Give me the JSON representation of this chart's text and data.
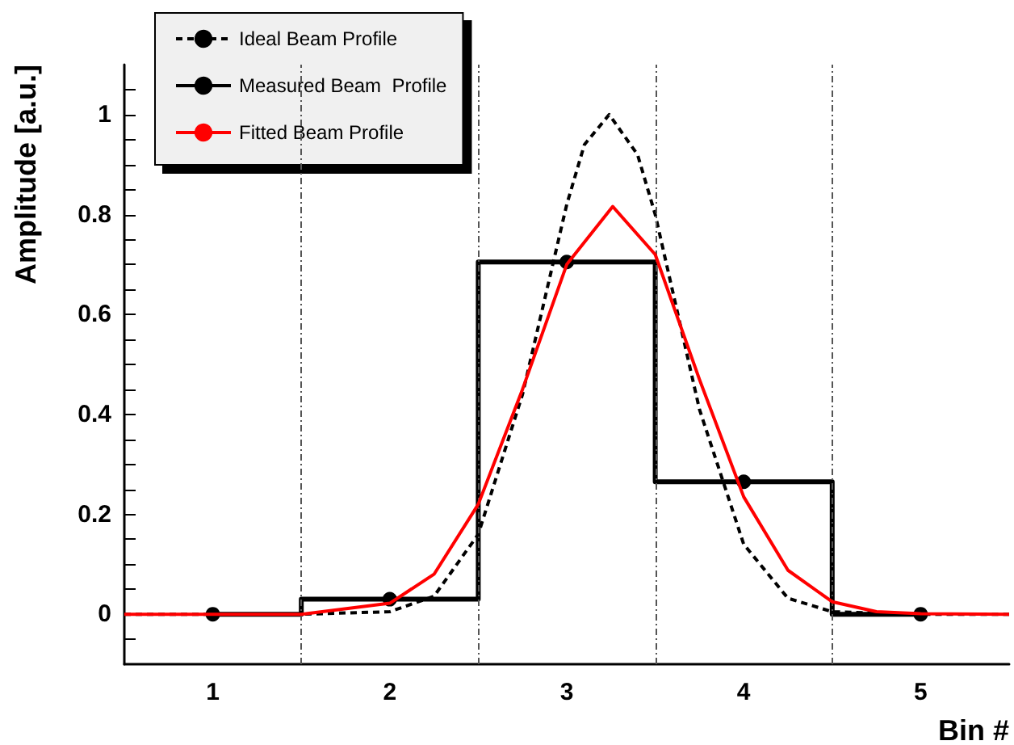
{
  "chart_data": {
    "type": "line",
    "xlabel": "Bin #",
    "ylabel": "Amplitude [a.u.]",
    "xlim": [
      0.5,
      5.5
    ],
    "xticks": [
      1,
      2,
      3,
      4,
      5
    ],
    "ylim": [
      -0.1,
      1.1
    ],
    "yticks": [
      {
        "value": -0.05,
        "label": null
      },
      0,
      {
        "value": 0.05,
        "label": null
      },
      {
        "value": 0.1,
        "label": null
      },
      {
        "value": 0.15,
        "label": null
      },
      0.2,
      {
        "value": 0.25,
        "label": null
      },
      {
        "value": 0.3,
        "label": null
      },
      {
        "value": 0.35,
        "label": null
      },
      0.4,
      {
        "value": 0.45,
        "label": null
      },
      {
        "value": 0.5,
        "label": null
      },
      {
        "value": 0.55,
        "label": null
      },
      0.6,
      {
        "value": 0.65,
        "label": null
      },
      {
        "value": 0.7,
        "label": null
      },
      {
        "value": 0.75,
        "label": null
      },
      0.8,
      {
        "value": 0.85,
        "label": null
      },
      {
        "value": 0.9,
        "label": null
      },
      {
        "value": 0.95,
        "label": null
      },
      1,
      {
        "value": 1.05,
        "label": null
      }
    ],
    "grid": false,
    "legend": "top left",
    "ref_lines": [
      {
        "axis": "x",
        "value": 1.5,
        "color": "#555555",
        "line_style": "dashed"
      },
      {
        "axis": "x",
        "value": 2.5,
        "color": "#555555",
        "line_style": "dashed"
      },
      {
        "axis": "x",
        "value": 3.5,
        "color": "#555555",
        "line_style": "dashed"
      },
      {
        "axis": "x",
        "value": 4.5,
        "color": "#555555",
        "line_style": "dashed"
      }
    ],
    "series": [
      {
        "name": "Ideal Beam Profile",
        "color": "#000000",
        "line_style": "dashed",
        "marker": "none",
        "x": [
          0.5,
          1.5,
          2.0,
          2.25,
          2.5,
          2.75,
          3.0,
          3.1,
          3.24,
          3.4,
          3.5,
          3.75,
          4.0,
          4.25,
          4.5,
          5.0,
          5.5
        ],
        "values": [
          0,
          0,
          0.005,
          0.036,
          0.16,
          0.44,
          0.82,
          0.94,
          1.0,
          0.92,
          0.8,
          0.41,
          0.14,
          0.032,
          0.005,
          0,
          0
        ]
      },
      {
        "name": "Measured Beam  Profile",
        "type": "step",
        "color": "#000000",
        "line_style": "solid",
        "marker": "circle",
        "x": [
          1,
          2,
          3,
          4,
          5
        ],
        "values": [
          0,
          0.03,
          0.705,
          0.265,
          0
        ]
      },
      {
        "name": "Fitted Beam Profile",
        "color": "#ff0000",
        "line_style": "solid",
        "marker": "none",
        "x": [
          0.5,
          1.5,
          2.0,
          2.25,
          2.5,
          2.75,
          3.0,
          3.26,
          3.5,
          3.75,
          4.0,
          4.25,
          4.5,
          4.75,
          5.0,
          5.5
        ],
        "values": [
          0,
          0,
          0.022,
          0.08,
          0.22,
          0.45,
          0.7,
          0.816,
          0.72,
          0.47,
          0.235,
          0.088,
          0.025,
          0.005,
          0.001,
          0
        ]
      }
    ]
  }
}
